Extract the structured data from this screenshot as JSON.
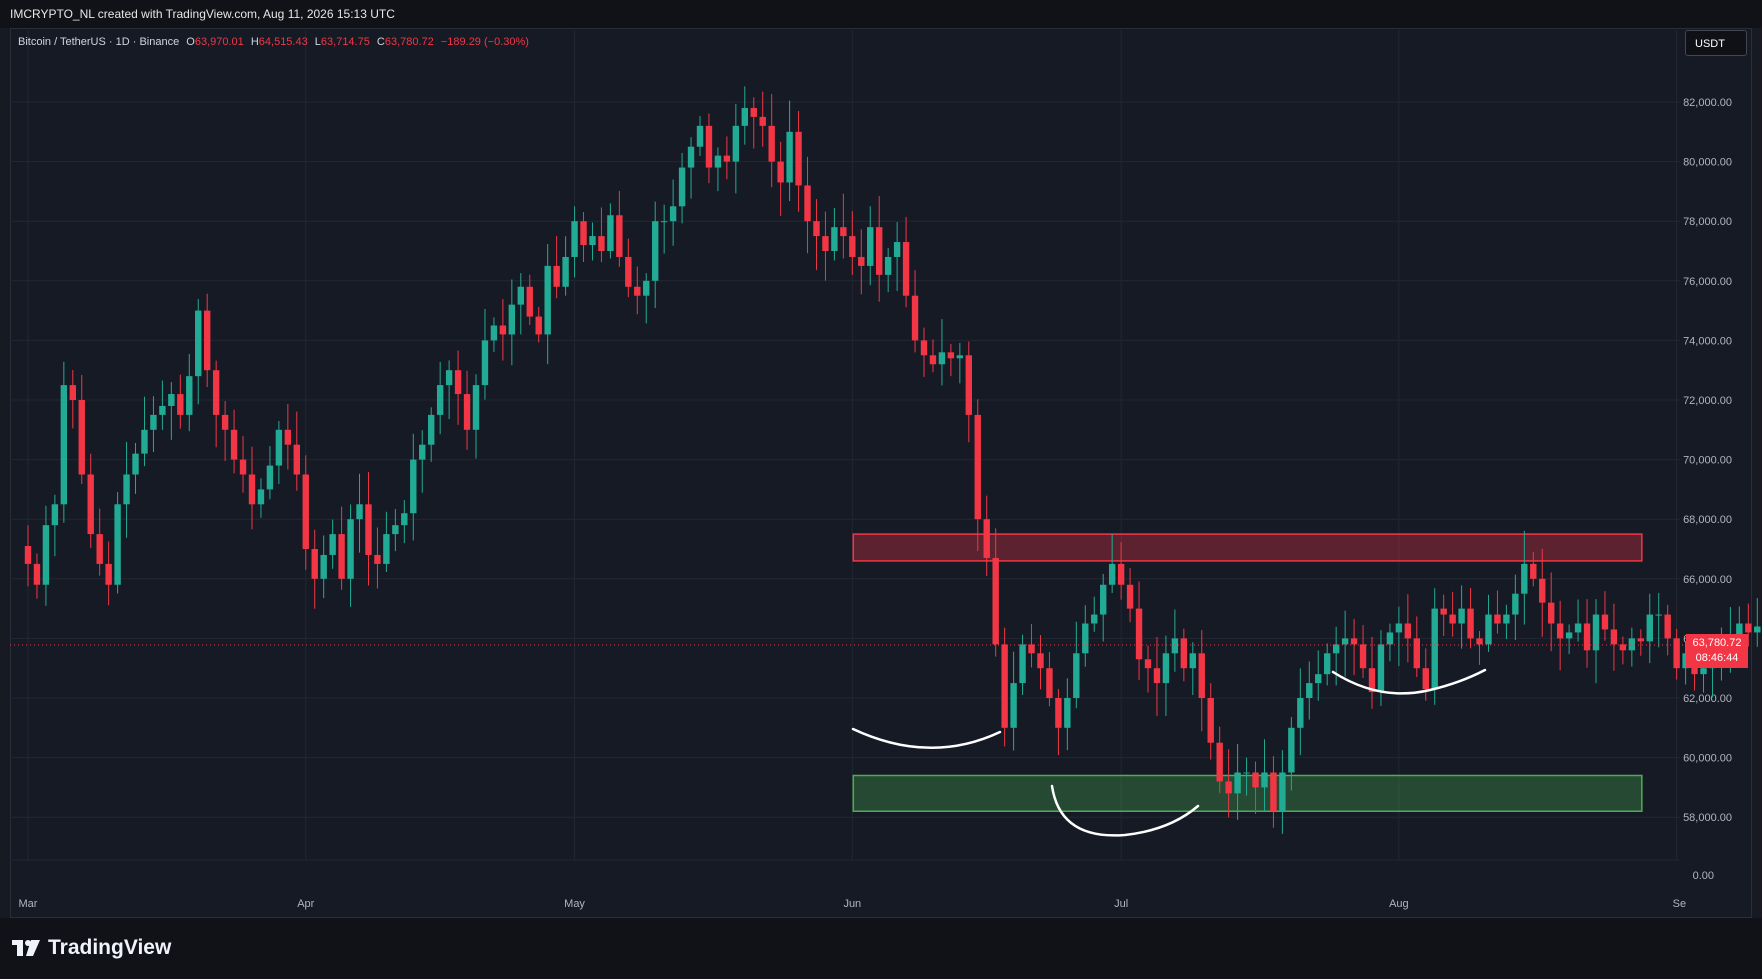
{
  "header": {
    "attribution": "IMCRYPTO_NL created with TradingView.com, Aug 11, 2026 15:13 UTC"
  },
  "legend": {
    "symbol": "Bitcoin / TetherUS · 1D · Binance",
    "open_label": "O",
    "open": "63,970.01",
    "high_label": "H",
    "high": "64,515.43",
    "low_label": "L",
    "low": "63,714.75",
    "close_label": "C",
    "close": "63,780.72",
    "change": "−189.29 (−0.30%)"
  },
  "currency": "USDT",
  "last_price": {
    "value": "63,780.72",
    "countdown": "08:46:44"
  },
  "brand": {
    "name": "TradingView"
  },
  "colors": {
    "up": "#22ab94",
    "down": "#f23645",
    "background": "#161a25",
    "grid": "#232733"
  },
  "chart_data": {
    "type": "candlestick",
    "y_ticks": [
      "82,000.00",
      "80,000.00",
      "78,000.00",
      "76,000.00",
      "74,000.00",
      "72,000.00",
      "70,000.00",
      "68,000.00",
      "66,000.00",
      "64,000.00",
      "62,000.00",
      "60,000.00",
      "58,000.00"
    ],
    "y_zero_tick": "0.00",
    "x_ticks": [
      {
        "label": "Mar",
        "day": 1
      },
      {
        "label": "Apr",
        "day": 32
      },
      {
        "label": "May",
        "day": 62
      },
      {
        "label": "Jun",
        "day": 93
      },
      {
        "label": "Jul",
        "day": 123
      },
      {
        "label": "Aug",
        "day": 154
      },
      {
        "label": "Se",
        "day": 185
      }
    ],
    "ylim": [
      57000,
      83500
    ],
    "closes": [
      66500,
      65800,
      67800,
      68500,
      72500,
      72000,
      69500,
      67500,
      66500,
      65800,
      68500,
      69500,
      70200,
      71000,
      71500,
      71800,
      72200,
      71500,
      72800,
      75000,
      73000,
      71500,
      71000,
      70000,
      69500,
      68500,
      69000,
      69800,
      71000,
      70500,
      69500,
      67000,
      66000,
      66800,
      67500,
      66000,
      68000,
      68500,
      66800,
      66500,
      67500,
      67800,
      68200,
      70000,
      70500,
      71500,
      72500,
      73000,
      72200,
      71000,
      72500,
      74000,
      74500,
      74200,
      75200,
      75800,
      74800,
      74200,
      76500,
      75800,
      76800,
      78000,
      77200,
      77500,
      77000,
      78200,
      76800,
      75800,
      75500,
      76000,
      78000,
      78000,
      78500,
      79800,
      80500,
      81200,
      79800,
      80200,
      80000,
      81200,
      81800,
      81500,
      81200,
      80000,
      79300,
      81000,
      79200,
      78000,
      77500,
      77000,
      77800,
      77500,
      76800,
      76500,
      77800,
      76200,
      76800,
      77300,
      75500,
      74000,
      73500,
      73200,
      73600,
      73400,
      73500,
      71500,
      68000,
      66700,
      63800,
      61000,
      62500,
      63800,
      63500,
      63000,
      62000,
      61000,
      62000,
      63500,
      64500,
      64800,
      65800,
      66500,
      65800,
      65000,
      63300,
      63000,
      62500,
      63500,
      64000,
      63000,
      63500,
      62000,
      60500,
      59200,
      58800,
      59500,
      59500,
      59000,
      59500,
      58200,
      59500,
      61000,
      62000,
      62500,
      62800,
      63500,
      63800,
      64000,
      63800,
      63000,
      62200,
      63800,
      64200,
      64500,
      64000,
      63000,
      62300,
      65000,
      64800,
      64500,
      65000,
      64000,
      63800,
      64800,
      64500,
      64800,
      65500,
      66500,
      66000,
      65200,
      64500,
      64000,
      64200,
      64500,
      63600,
      64800,
      64300,
      63800,
      63600,
      64000,
      63900,
      64800,
      64800,
      64000,
      63000,
      63500,
      62800,
      63000,
      63300,
      63700,
      64000,
      64500,
      64200,
      64400,
      64600,
      64500,
      64600,
      64500,
      63970,
      63780
    ]
  },
  "annotations": {
    "resistance_zone": {
      "from": 66600,
      "to": 67500,
      "start_day": 94,
      "end_day": 180
    },
    "support_zone": {
      "from": 58200,
      "to": 59400,
      "start_day": 94,
      "end_day": 180
    }
  }
}
